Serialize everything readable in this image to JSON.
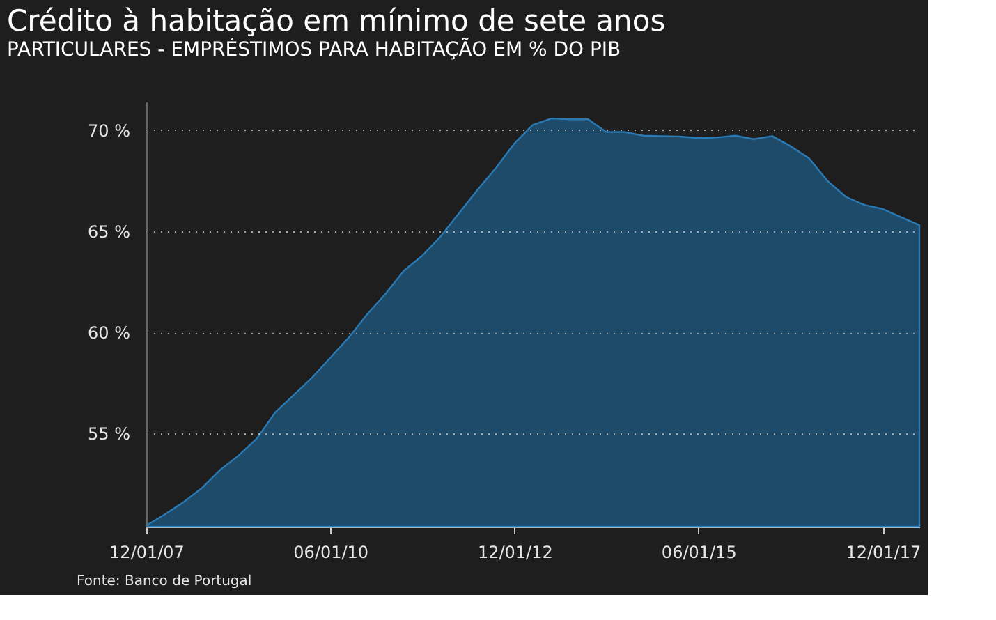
{
  "chart_data": {
    "type": "area",
    "title": "Crédito à habitação em mínimo de sete anos",
    "subtitle": "PARTICULARES - EMPRÉSTIMOS PARA HABITAÇÃO EM % DO PIB",
    "annotations": [
      "Fonte: Banco de Portugal"
    ],
    "x": [
      "2007-12-01",
      "2008-03-01",
      "2008-06-01",
      "2008-09-01",
      "2008-12-01",
      "2009-03-01",
      "2009-06-01",
      "2009-09-01",
      "2009-12-01",
      "2010-03-01",
      "2010-06-01",
      "2010-09-01",
      "2010-12-01",
      "2011-03-01",
      "2011-06-01",
      "2011-09-01",
      "2011-12-01",
      "2012-03-01",
      "2012-06-01",
      "2012-09-01",
      "2012-12-01",
      "2013-03-01",
      "2013-06-01",
      "2013-09-01",
      "2013-12-01",
      "2014-03-01",
      "2014-06-01",
      "2014-09-01",
      "2014-12-01",
      "2015-03-01",
      "2015-06-01",
      "2015-09-01",
      "2015-12-01",
      "2016-03-01",
      "2016-06-01",
      "2016-09-01",
      "2016-12-01",
      "2017-03-01",
      "2017-06-01",
      "2017-09-01",
      "2017-12-01",
      "2018-03-01",
      "2018-06-01"
    ],
    "series": [
      {
        "color": "#1f4b6b",
        "values": [
          50.45,
          51.0,
          51.6,
          52.3,
          53.2,
          53.9,
          54.75,
          56.05,
          56.9,
          57.75,
          58.75,
          59.75,
          60.9,
          61.9,
          63.05,
          63.8,
          64.75,
          65.9,
          67.05,
          68.15,
          69.35,
          70.25,
          70.57,
          70.53,
          70.53,
          69.9,
          69.9,
          69.72,
          69.7,
          69.68,
          69.6,
          69.63,
          69.72,
          69.55,
          69.7,
          69.2,
          68.6,
          67.5,
          66.7,
          66.3,
          66.1,
          65.7,
          65.3
        ]
      }
    ],
    "xlim": [
      "2007-12-01",
      "2018-06-01"
    ],
    "xticks": [
      {
        "value": "2007-12-01",
        "label": "12/01/07"
      },
      {
        "value": "2010-06-01",
        "label": "06/01/10"
      },
      {
        "value": "2012-12-01",
        "label": "12/01/12"
      },
      {
        "value": "2015-06-01",
        "label": "06/01/15"
      },
      {
        "value": "2017-12-01",
        "label": "12/01/17"
      }
    ],
    "ylim": [
      50.4,
      71.4
    ],
    "yticks": [
      {
        "value": 55,
        "label": "55 %"
      },
      {
        "value": 60,
        "label": "60 %"
      },
      {
        "value": 65,
        "label": "65 %"
      },
      {
        "value": 70,
        "label": "70 %"
      }
    ],
    "grid": "y",
    "legend": false
  }
}
